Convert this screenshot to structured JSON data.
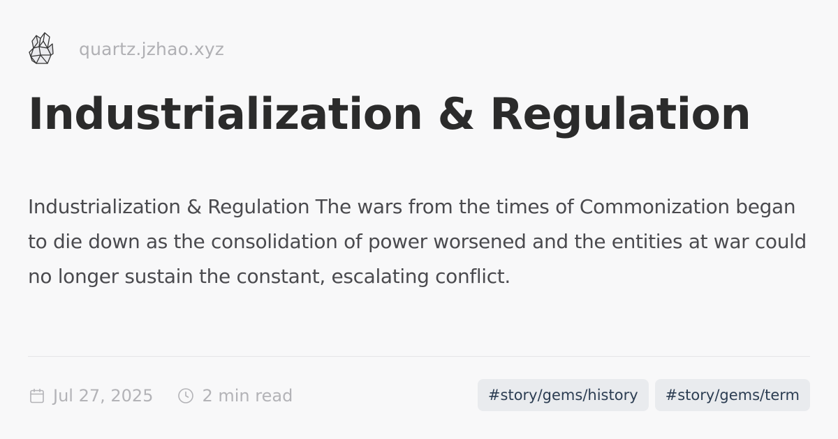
{
  "site": {
    "name": "quartz.jzhao.xyz",
    "logo_icon": "crystal-icon"
  },
  "page": {
    "title": "Industrialization & Regulation",
    "description": "Industrialization & Regulation The wars from the times of Commonization began to die down as the consolidation of power worsened and the entities at war could no longer sustain the constant, escalating conflict."
  },
  "meta": {
    "date": "Jul 27, 2025",
    "date_icon": "calendar-icon",
    "reading_time": "2 min read",
    "reading_time_icon": "clock-icon"
  },
  "tags": [
    {
      "label": "#story/gems/history"
    },
    {
      "label": "#story/gems/term"
    }
  ],
  "colors": {
    "background": "#f8f8f9",
    "title": "#2b2b2b",
    "text": "#4a4a4e",
    "muted": "#b3b3b7",
    "tag_background": "#e9ebee",
    "tag_text": "#2c3d52"
  }
}
